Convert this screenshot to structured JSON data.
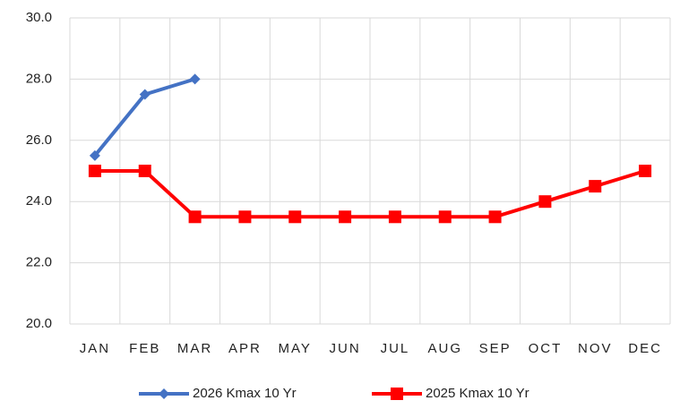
{
  "chart_data": {
    "type": "line",
    "categories": [
      "JAN",
      "FEB",
      "MAR",
      "APR",
      "MAY",
      "JUN",
      "JUL",
      "AUG",
      "SEP",
      "OCT",
      "NOV",
      "DEC"
    ],
    "series": [
      {
        "name": "2026 Kmax 10 Yr",
        "color": "#4472c4",
        "marker": "diamond",
        "values": [
          25.5,
          27.5,
          28.0,
          null,
          null,
          null,
          null,
          null,
          null,
          null,
          null,
          null
        ]
      },
      {
        "name": "2025 Kmax 10 Yr",
        "color": "#ff0000",
        "marker": "square",
        "values": [
          25.0,
          25.0,
          23.5,
          23.5,
          23.5,
          23.5,
          23.5,
          23.5,
          23.5,
          24.0,
          24.5,
          25.0
        ]
      }
    ],
    "ylim": [
      20,
      30
    ],
    "yticks": [
      {
        "value": 20,
        "label": "20.0"
      },
      {
        "value": 22,
        "label": "22.0"
      },
      {
        "value": 24,
        "label": "24.0"
      },
      {
        "value": 26,
        "label": "26.0"
      },
      {
        "value": 28,
        "label": "28.0"
      },
      {
        "value": 30,
        "label": "30.0"
      }
    ],
    "grid": true,
    "legend": "bottom"
  }
}
